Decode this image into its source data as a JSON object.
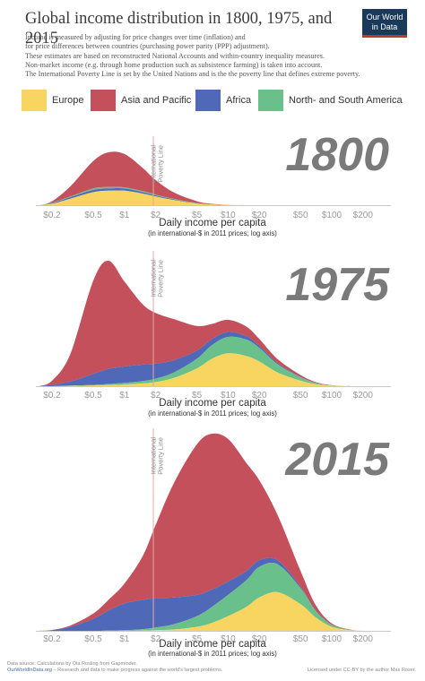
{
  "header": {
    "title": "Global income distribution in 1800, 1975, and 2015",
    "logo_line1": "Our World",
    "logo_line2": "in Data",
    "subtitle_lines": [
      "Income is measured by adjusting for price changes over time (inflation) and",
      "for price differences between countries (purchasing power parity (PPP) adjustment).",
      "These estimates are based on reconstructed National Accounts and within-country inequality measures.",
      "Non-market income (e.g. through home production such as subsistence farming) is taken into account.",
      "The International Poverty Line is set by the United Nations and is the the poverty line that defines extreme poverty."
    ]
  },
  "legend": [
    {
      "label": "Europe",
      "color": "#f7d560"
    },
    {
      "label": "Asia and Pacific",
      "color": "#c4505b"
    },
    {
      "label": "Africa",
      "color": "#5068b8"
    },
    {
      "label": "North- and South America",
      "color": "#6ac08b"
    }
  ],
  "chart_data": [
    {
      "type": "area",
      "title": "1800",
      "stacking": "stacked",
      "scale": "log",
      "xlabel": "Daily income per capita",
      "xlabel_sub": "(in international-$ in 2011 prices; log axis)",
      "x_ticks": [
        "$0.2",
        "$0.5",
        "$1",
        "$2",
        "$5",
        "$10",
        "$20",
        "$50",
        "$100",
        "$200"
      ],
      "x": [
        0.15,
        0.2,
        0.3,
        0.5,
        0.7,
        1,
        1.5,
        2,
        3,
        5,
        7,
        10,
        15,
        20,
        30
      ],
      "annotation": "International Poverty Line",
      "poverty_line": 1.9,
      "series": [
        {
          "name": "Europe",
          "values": [
            0,
            0.1,
            0.45,
            0.9,
            1.0,
            1.0,
            0.8,
            0.6,
            0.35,
            0.12,
            0.05,
            0.02,
            0,
            0,
            0
          ]
        },
        {
          "name": "Africa",
          "values": [
            0,
            0.05,
            0.1,
            0.15,
            0.15,
            0.15,
            0.1,
            0.08,
            0.05,
            0.02,
            0,
            0,
            0,
            0,
            0
          ]
        },
        {
          "name": "North- and South America",
          "values": [
            0,
            0.02,
            0.05,
            0.1,
            0.1,
            0.08,
            0.07,
            0.05,
            0.03,
            0.01,
            0,
            0,
            0,
            0,
            0
          ]
        },
        {
          "name": "Asia and Pacific",
          "values": [
            0,
            0.1,
            0.7,
            1.9,
            2.4,
            2.3,
            1.6,
            1.0,
            0.45,
            0.12,
            0.04,
            0.01,
            0,
            0,
            0
          ]
        }
      ]
    },
    {
      "type": "area",
      "title": "1975",
      "stacking": "stacked",
      "scale": "log",
      "xlabel": "Daily income per capita",
      "xlabel_sub": "(in international-$ in 2011 prices; log axis)",
      "x_ticks": [
        "$0.2",
        "$0.5",
        "$1",
        "$2",
        "$5",
        "$10",
        "$20",
        "$50",
        "$100",
        "$200"
      ],
      "x": [
        0.15,
        0.2,
        0.3,
        0.5,
        0.7,
        1,
        1.5,
        2,
        3,
        5,
        7,
        10,
        15,
        20,
        30,
        50,
        70,
        100,
        150
      ],
      "annotation": "International Poverty Line",
      "poverty_line": 1.9,
      "series": [
        {
          "name": "Europe",
          "values": [
            0,
            0,
            0.02,
            0.05,
            0.08,
            0.12,
            0.2,
            0.3,
            0.6,
            1.3,
            2.0,
            2.4,
            2.2,
            1.8,
            1.0,
            0.4,
            0.15,
            0.04,
            0
          ]
        },
        {
          "name": "North- and South America",
          "values": [
            0,
            0,
            0.02,
            0.05,
            0.08,
            0.12,
            0.18,
            0.25,
            0.4,
            0.7,
            1.0,
            1.2,
            1.2,
            1.0,
            0.6,
            0.25,
            0.1,
            0.02,
            0
          ]
        },
        {
          "name": "Africa",
          "values": [
            0,
            0.1,
            0.3,
            0.8,
            1.1,
            1.2,
            1.2,
            1.1,
            0.9,
            0.6,
            0.45,
            0.35,
            0.25,
            0.15,
            0.08,
            0.02,
            0,
            0,
            0
          ]
        },
        {
          "name": "Asia and Pacific",
          "values": [
            0,
            0.3,
            2.0,
            6.8,
            7.9,
            6.2,
            4.4,
            3.7,
            3.0,
            1.8,
            1.1,
            0.9,
            0.7,
            0.5,
            0.3,
            0.15,
            0.05,
            0.01,
            0
          ]
        }
      ]
    },
    {
      "type": "area",
      "title": "2015",
      "stacking": "stacked",
      "scale": "log",
      "xlabel": "Daily income per capita",
      "xlabel_sub": "(in international-$ in 2011 prices; log axis)",
      "x_ticks": [
        "$0.2",
        "$0.5",
        "$1",
        "$2",
        "$5",
        "$10",
        "$20",
        "$50",
        "$100",
        "$200"
      ],
      "x": [
        0.15,
        0.2,
        0.3,
        0.5,
        0.7,
        1,
        1.5,
        2,
        3,
        5,
        7,
        10,
        15,
        20,
        30,
        50,
        70,
        100,
        150,
        200
      ],
      "annotation": "International Poverty Line",
      "poverty_line": 1.9,
      "series": [
        {
          "name": "Europe",
          "values": [
            0,
            0,
            0,
            0,
            0,
            0,
            0.02,
            0.05,
            0.1,
            0.3,
            0.6,
            1.1,
            1.8,
            2.5,
            2.9,
            2.0,
            1.0,
            0.3,
            0.05,
            0
          ]
        },
        {
          "name": "North- and South America",
          "values": [
            0,
            0,
            0,
            0,
            0.02,
            0.05,
            0.1,
            0.2,
            0.4,
            0.8,
            1.2,
            1.6,
            2.0,
            2.3,
            2.1,
            1.2,
            0.5,
            0.15,
            0.03,
            0
          ]
        },
        {
          "name": "Africa",
          "values": [
            0,
            0.05,
            0.3,
            0.9,
            1.5,
            2.0,
            2.2,
            2.2,
            2.0,
            1.6,
            1.3,
            1.0,
            0.7,
            0.5,
            0.3,
            0.1,
            0.03,
            0,
            0,
            0
          ]
        },
        {
          "name": "Asia and Pacific",
          "values": [
            0,
            0.02,
            0.1,
            0.4,
            0.8,
            1.5,
            3.3,
            5.5,
            8.6,
            11.3,
            11.7,
            10.7,
            8.1,
            6.0,
            3.4,
            1.2,
            0.4,
            0.1,
            0.02,
            0
          ]
        }
      ]
    }
  ],
  "footer": {
    "source": "Data source: Calculations by Ola Rosling from Gapminder.",
    "site": "OurWorldInData.org",
    "site_desc": " – Research and data to make progress against the world's largest problems.",
    "license": "Licensed under CC-BY by the author Max Roser."
  }
}
